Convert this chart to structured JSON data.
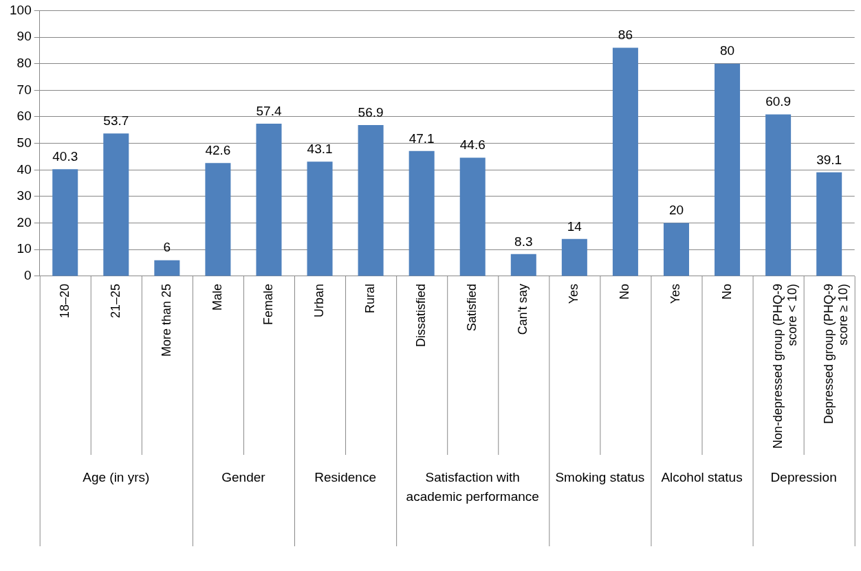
{
  "chart_data": {
    "type": "bar",
    "categories": [
      "18–20",
      "21–25",
      "More than 25",
      "Male",
      "Female",
      "Urban",
      "Rural",
      "Dissatisfied",
      "Satisfied",
      "Can't say",
      "Yes",
      "No",
      "Yes",
      "No",
      "Non-depressed group (PHQ-9 score < 10)",
      "Depressed group (PHQ-9 score ≥ 10)"
    ],
    "values": [
      40.3,
      53.7,
      6,
      42.6,
      57.4,
      43.1,
      56.9,
      47.1,
      44.6,
      8.3,
      14,
      86,
      20,
      80,
      60.9,
      39.1
    ],
    "color": "#4f81bd",
    "ylim": [
      0,
      100
    ],
    "yticks": [
      0,
      10,
      20,
      30,
      40,
      50,
      60,
      70,
      80,
      90,
      100
    ],
    "grid": "y",
    "data_labels": true,
    "legend": false,
    "annotations": [
      "Age (in yrs)",
      "Gender",
      "Residence",
      "Satisfaction with academic performance",
      "Smoking status",
      "Alcohol status",
      "Depression"
    ]
  }
}
